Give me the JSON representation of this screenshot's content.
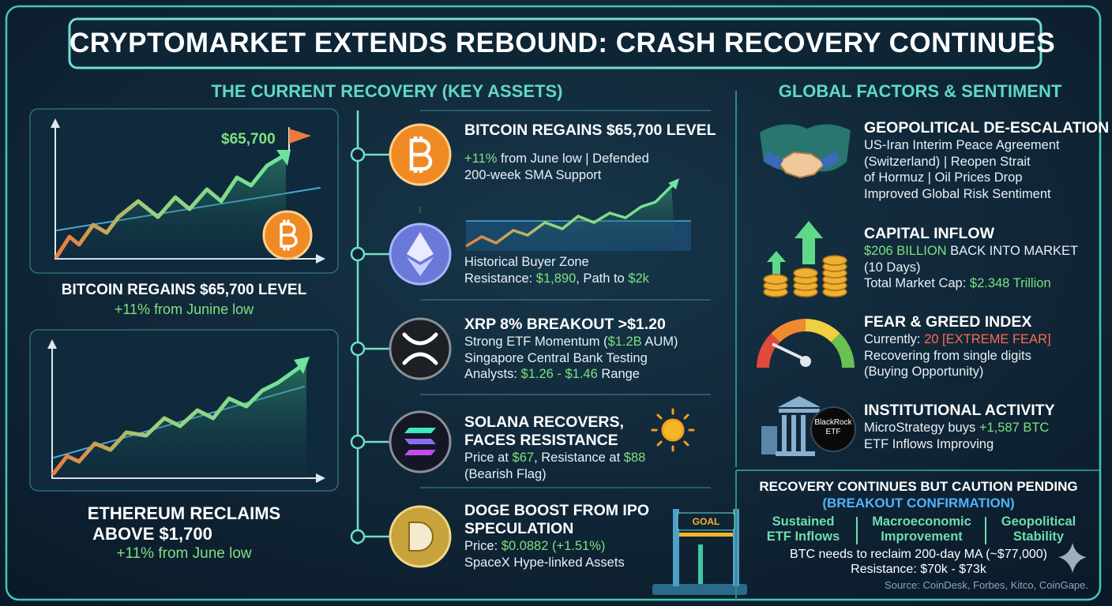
{
  "title": "CRYPTOMARKET EXTENDS REBOUND: CRASH RECOVERY CONTINUES",
  "left": {
    "heading": "THE CURRENT RECOVERY (KEY ASSETS)",
    "bitcoin_chart": {
      "flag_label": "$65,700",
      "caption": "BITCOIN REGAINS $65,700 LEVEL",
      "sub": "+11% from Junine low"
    },
    "ethereum_chart": {
      "caption": [
        "ETHEREUM RECLAIMS",
        "ABOVE $1,700"
      ],
      "sub": "+11% from June low"
    },
    "assets": [
      {
        "title": [
          "BITCOIN REGAINS $65,700 LEVEL"
        ],
        "lines": [
          [
            {
              "text": "+11%",
              "style": "green"
            },
            {
              "text": " from June low | Defended"
            }
          ],
          "200-week SMA Support"
        ]
      },
      {
        "lines": [
          "Historical Buyer Zone",
          [
            {
              "text": "Resistance: "
            },
            {
              "text": "$1,890",
              "style": "green"
            },
            {
              "text": ", Path to "
            },
            {
              "text": "$2k",
              "style": "green"
            }
          ]
        ]
      },
      {
        "title": [
          "XRP 8% BREAKOUT >$1.20"
        ],
        "lines": [
          [
            {
              "text": "Strong ETF Momentum ("
            },
            {
              "text": "$1.2B",
              "style": "green"
            },
            {
              "text": " AUM)"
            }
          ],
          "Singapore Central Bank Testing",
          [
            {
              "text": "Analysts: "
            },
            {
              "text": "$1.26 - $1.46",
              "style": "green"
            },
            {
              "text": " Range"
            }
          ]
        ]
      },
      {
        "title": [
          "SOLANA RECOVERS,",
          "FACES RESISTANCE"
        ],
        "lines": [
          [
            {
              "text": "Price at "
            },
            {
              "text": "$67",
              "style": "green"
            },
            {
              "text": ", Resistance at "
            },
            {
              "text": "$88",
              "style": "green"
            }
          ],
          "(Bearish Flag)"
        ]
      },
      {
        "title": [
          "DOGE BOOST FROM IPO",
          "SPECULATION"
        ],
        "lines": [
          [
            {
              "text": "Price: "
            },
            {
              "text": "$0.0882 (+1.51%)",
              "style": "green"
            }
          ],
          "SpaceX Hype-linked Assets"
        ]
      }
    ],
    "goal_label": "GOAL"
  },
  "right": {
    "heading": "GLOBAL FACTORS & SENTIMENT",
    "factors": [
      {
        "title": "GEOPOLITICAL DE-ESCALATION",
        "lines": [
          "US-Iran Interim Peace Agreement",
          "(Switzerland) | Reopen Strait",
          "of Hormuz | Oil Prices Drop",
          "Improved Global Risk Sentiment"
        ]
      },
      {
        "title": "CAPITAL INFLOW",
        "lines": [
          [
            {
              "text": "$206 BILLION",
              "style": "green"
            },
            {
              "text": " BACK INTO MARKET"
            }
          ],
          "(10 Days)",
          [
            {
              "text": "Total Market Cap: "
            },
            {
              "text": "$2.348 Trillion",
              "style": "green"
            }
          ]
        ]
      },
      {
        "title": "FEAR & GREED INDEX",
        "lines": [
          [
            {
              "text": "Currently: "
            },
            {
              "text": "20 [EXTREME FEAR]",
              "style": "red"
            }
          ],
          "Recovering from single digits",
          "(Buying Opportunity)"
        ]
      },
      {
        "title": "INSTITUTIONAL ACTIVITY",
        "lines": [
          [
            {
              "text": "MicroStrategy buys "
            },
            {
              "text": "+1,587 BTC",
              "style": "green"
            }
          ],
          "ETF Inflows Improving"
        ]
      }
    ],
    "blackrock_badge": [
      "BlackRock",
      "ETF"
    ],
    "outlook": {
      "heading": "RECOVERY CONTINUES BUT CAUTION PENDING",
      "subheading": "(BREAKOUT CONFIRMATION)",
      "columns": [
        [
          "Sustained",
          "ETF Inflows"
        ],
        [
          "Macroeconomic",
          "Improvement"
        ],
        [
          "Geopolitical",
          "Stability"
        ]
      ],
      "lines": [
        "BTC needs to reclaim 200-day MA (~$77,000)",
        "Resistance: $70k - $73k"
      ],
      "source": "Source: CoinDesk, Forbes, Kitco, CoinGape."
    }
  }
}
